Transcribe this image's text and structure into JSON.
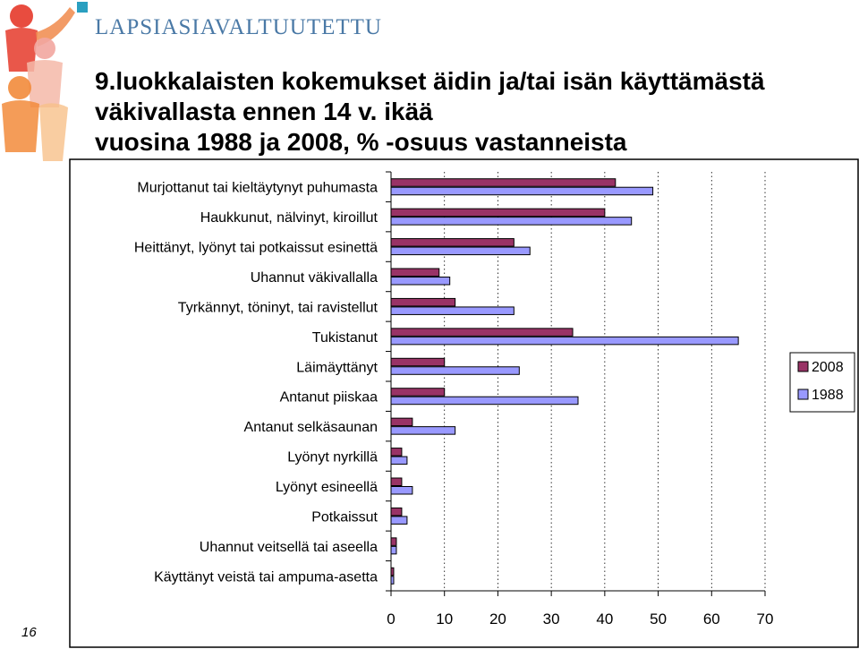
{
  "header": {
    "brand": "LAPSIASIAVALTUUTETTU",
    "title_lines": [
      "9.luokkalaisten kokemukset äidin ja/tai isän käyttämästä",
      "väkivallasta ennen 14 v. ikää",
      "vuosina 1988 ja 2008, % -osuus vastanneista"
    ]
  },
  "page_number": "16",
  "chart_data": {
    "type": "bar",
    "orientation": "horizontal",
    "categories": [
      "Murjottanut tai kieltäytynyt puhumasta",
      "Haukkunut, nälvinyt, kiroillut",
      "Heittänyt, lyönyt tai potkaissut esinettä",
      "Uhannut väkivallalla",
      "Tyrkännyt, töninyt, tai ravistellut",
      "Tukistanut",
      "Läimäyttänyt",
      "Antanut piiskaa",
      "Antanut selkäsaunan",
      "Lyönyt nyrkillä",
      "Lyönyt esineellä",
      "Potkaissut",
      "Uhannut veitsellä tai aseella",
      "Käyttänyt veistä tai ampuma-asetta"
    ],
    "series": [
      {
        "name": "2008",
        "color": "#993366",
        "values": [
          42,
          40,
          23,
          9,
          12,
          34,
          10,
          10,
          4,
          2,
          2,
          2,
          1,
          0.5
        ]
      },
      {
        "name": "1988",
        "color": "#9999ff",
        "values": [
          49,
          45,
          26,
          11,
          23,
          65,
          24,
          35,
          12,
          3,
          4,
          3,
          1,
          0.5
        ]
      }
    ],
    "xlim": [
      0,
      70
    ],
    "x_ticks": [
      0,
      10,
      20,
      30,
      40,
      50,
      60,
      70
    ],
    "grid": "vertical dashed",
    "legend_position": "right"
  }
}
